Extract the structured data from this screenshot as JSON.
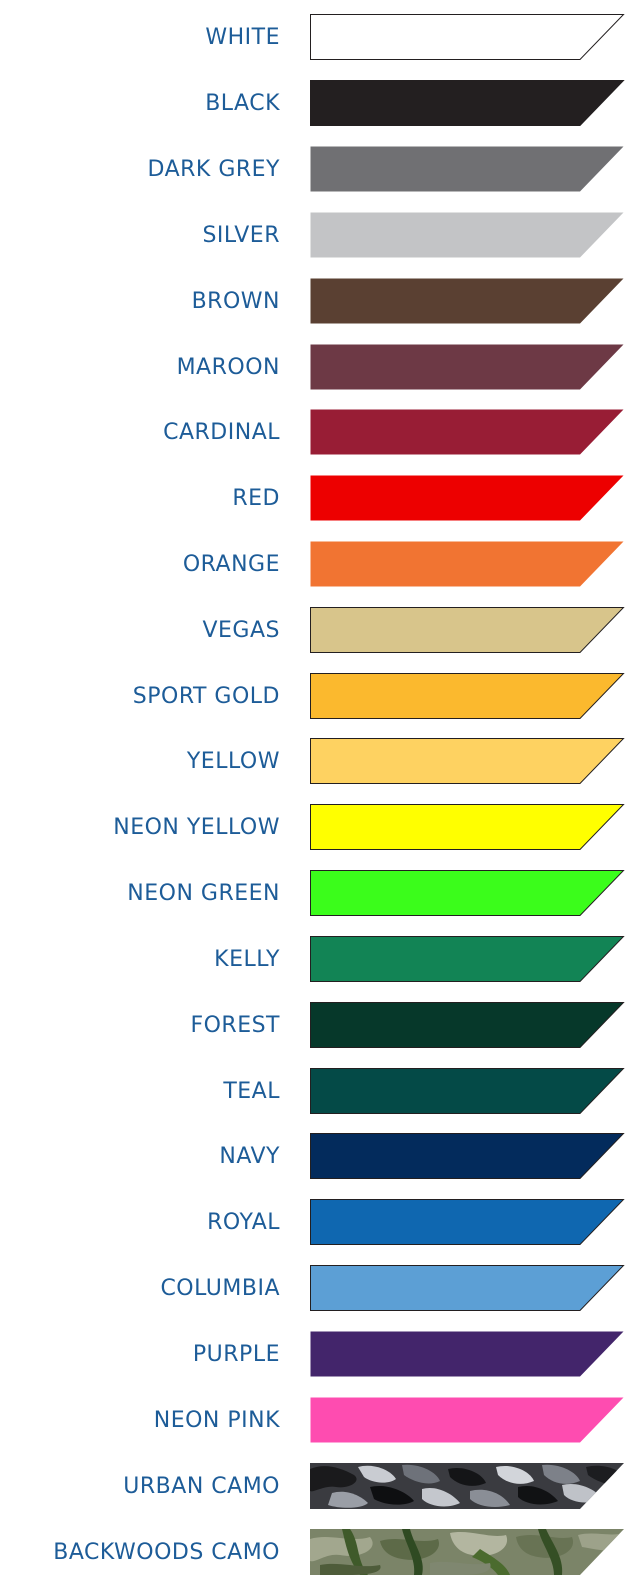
{
  "swatches": [
    {
      "label": "WHITE",
      "color": "#ffffff",
      "pattern": "solid"
    },
    {
      "label": "BLACK",
      "color": "#231f20",
      "pattern": "solid"
    },
    {
      "label": "DARK GREY",
      "color": "#707073",
      "pattern": "solid"
    },
    {
      "label": "SILVER",
      "color": "#c3c4c6",
      "pattern": "solid"
    },
    {
      "label": "BROWN",
      "color": "#5a4032",
      "pattern": "solid"
    },
    {
      "label": "MAROON",
      "color": "#6d3945",
      "pattern": "solid"
    },
    {
      "label": "CARDINAL",
      "color": "#981d35",
      "pattern": "solid"
    },
    {
      "label": "RED",
      "color": "#ed0000",
      "pattern": "solid"
    },
    {
      "label": "ORANGE",
      "color": "#f17432",
      "pattern": "solid"
    },
    {
      "label": "VEGAS",
      "color": "#d8c58b",
      "pattern": "solid"
    },
    {
      "label": "SPORT GOLD",
      "color": "#fbb92e",
      "pattern": "solid"
    },
    {
      "label": "YELLOW",
      "color": "#fed261",
      "pattern": "solid"
    },
    {
      "label": "NEON YELLOW",
      "color": "#ffff00",
      "pattern": "solid"
    },
    {
      "label": "NEON GREEN",
      "color": "#3bfd1b",
      "pattern": "solid"
    },
    {
      "label": "KELLY",
      "color": "#128455",
      "pattern": "solid"
    },
    {
      "label": "FOREST",
      "color": "#06382a",
      "pattern": "solid"
    },
    {
      "label": "TEAL",
      "color": "#044a47",
      "pattern": "solid"
    },
    {
      "label": "NAVY",
      "color": "#032b5c",
      "pattern": "solid"
    },
    {
      "label": "ROYAL",
      "color": "#0f67b0",
      "pattern": "solid"
    },
    {
      "label": "COLUMBIA",
      "color": "#5c9fd5",
      "pattern": "solid"
    },
    {
      "label": "PURPLE",
      "color": "#43256b",
      "pattern": "solid"
    },
    {
      "label": "NEON PINK",
      "color": "#fe4cb0",
      "pattern": "solid"
    },
    {
      "label": "URBAN CAMO",
      "color": "#3a3b40",
      "pattern": "urban-camo"
    },
    {
      "label": "BACKWOODS CAMO",
      "color": "#7b8468",
      "pattern": "backwoods-camo"
    }
  ]
}
